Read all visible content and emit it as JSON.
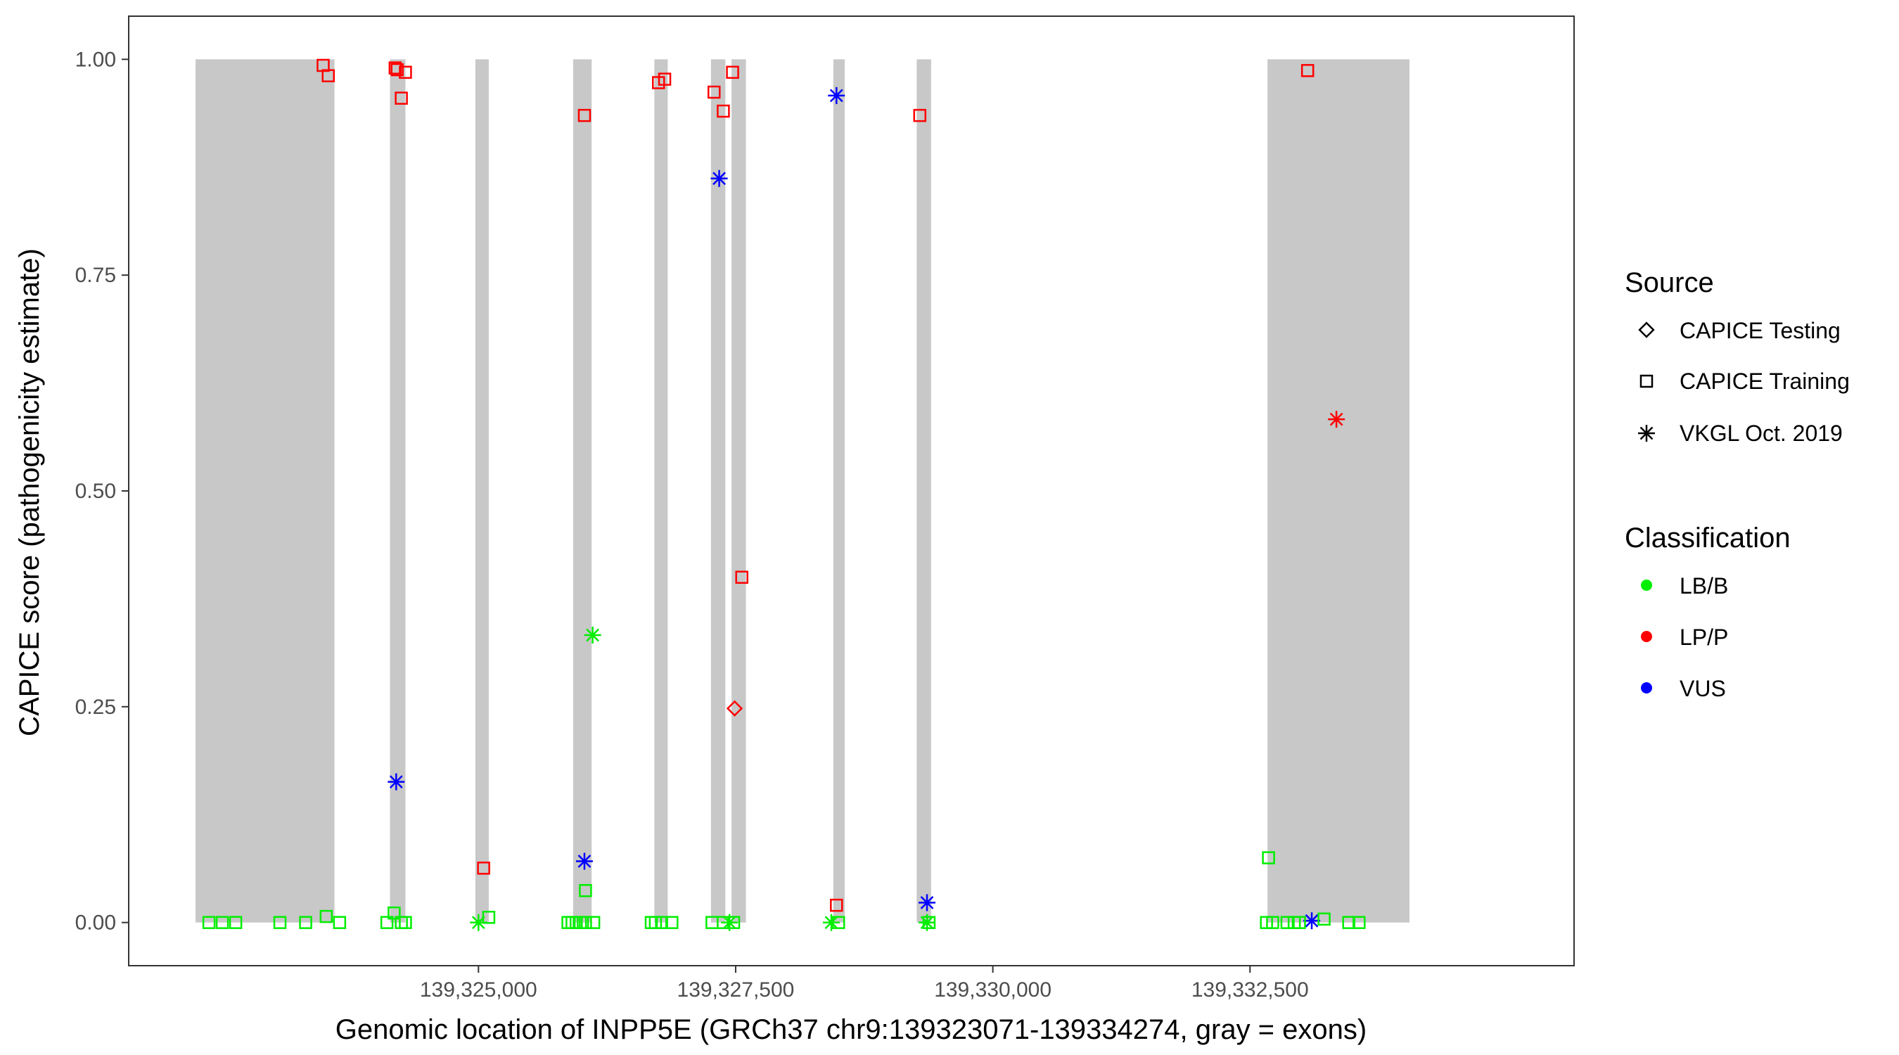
{
  "chart_data": {
    "type": "scatter",
    "title": "",
    "xlabel": "Genomic location of INPP5E (GRCh37 chr9:139323071-139334274, gray = exons)",
    "ylabel": "CAPICE score (pathogenicity estimate)",
    "xlim": [
      139321600,
      139335650
    ],
    "ylim": [
      -0.05,
      1.05
    ],
    "x_ticks": [
      139325000,
      139327500,
      139330000,
      139332500
    ],
    "x_tick_labels": [
      "139,325,000",
      "139,327,500",
      "139,330,000",
      "139,332,500"
    ],
    "y_ticks": [
      0,
      0.25,
      0.5,
      0.75,
      1
    ],
    "y_tick_labels": [
      "0.00",
      "0.25",
      "0.50",
      "0.75",
      "1.00"
    ],
    "grid": false,
    "exon_color": "#c8c8c8",
    "exons": [
      {
        "start": 139322250,
        "end": 139323600,
        "ymin": 0,
        "ymax": 1
      },
      {
        "start": 139324140,
        "end": 139324290,
        "ymin": 0,
        "ymax": 1
      },
      {
        "start": 139324970,
        "end": 139325100,
        "ymin": 0,
        "ymax": 1
      },
      {
        "start": 139325920,
        "end": 139326100,
        "ymin": 0,
        "ymax": 1
      },
      {
        "start": 139326710,
        "end": 139326840,
        "ymin": 0,
        "ymax": 1
      },
      {
        "start": 139327260,
        "end": 139327400,
        "ymin": 0,
        "ymax": 1
      },
      {
        "start": 139327460,
        "end": 139327600,
        "ymin": 0,
        "ymax": 1
      },
      {
        "start": 139328450,
        "end": 139328560,
        "ymin": 0,
        "ymax": 1
      },
      {
        "start": 139329260,
        "end": 139329400,
        "ymin": 0,
        "ymax": 1
      },
      {
        "start": 139332670,
        "end": 139334050,
        "ymin": 0,
        "ymax": 1
      }
    ],
    "legend": {
      "position": "right",
      "source": {
        "title": "Source",
        "items": [
          {
            "label": "CAPICE Testing",
            "shape": "diamond"
          },
          {
            "label": "CAPICE Training",
            "shape": "square"
          },
          {
            "label": "VKGL Oct. 2019",
            "shape": "asterisk"
          }
        ]
      },
      "classification": {
        "title": "Classification",
        "items": [
          {
            "label": "LB/B",
            "color": "#00ee00"
          },
          {
            "label": "LP/P",
            "color": "#ff0000"
          },
          {
            "label": "VUS",
            "color": "#0000ff"
          }
        ]
      }
    },
    "points": [
      {
        "x": 139323490,
        "y": 0.993,
        "shape": "square",
        "cls": "LP/P"
      },
      {
        "x": 139323540,
        "y": 0.981,
        "shape": "square",
        "cls": "LP/P"
      },
      {
        "x": 139324190,
        "y": 0.99,
        "shape": "square",
        "cls": "LP/P"
      },
      {
        "x": 139324210,
        "y": 0.988,
        "shape": "square",
        "cls": "LP/P"
      },
      {
        "x": 139324290,
        "y": 0.985,
        "shape": "square",
        "cls": "LP/P"
      },
      {
        "x": 139324250,
        "y": 0.955,
        "shape": "square",
        "cls": "LP/P"
      },
      {
        "x": 139325050,
        "y": 0.063,
        "shape": "square",
        "cls": "LP/P"
      },
      {
        "x": 139326030,
        "y": 0.935,
        "shape": "square",
        "cls": "LP/P"
      },
      {
        "x": 139326750,
        "y": 0.973,
        "shape": "square",
        "cls": "LP/P"
      },
      {
        "x": 139326810,
        "y": 0.977,
        "shape": "square",
        "cls": "LP/P"
      },
      {
        "x": 139327290,
        "y": 0.962,
        "shape": "square",
        "cls": "LP/P"
      },
      {
        "x": 139327380,
        "y": 0.94,
        "shape": "square",
        "cls": "LP/P"
      },
      {
        "x": 139327470,
        "y": 0.985,
        "shape": "square",
        "cls": "LP/P"
      },
      {
        "x": 139327560,
        "y": 0.4,
        "shape": "square",
        "cls": "LP/P"
      },
      {
        "x": 139328480,
        "y": 0.02,
        "shape": "square",
        "cls": "LP/P"
      },
      {
        "x": 139329290,
        "y": 0.935,
        "shape": "square",
        "cls": "LP/P"
      },
      {
        "x": 139333060,
        "y": 0.987,
        "shape": "square",
        "cls": "LP/P"
      },
      {
        "x": 139327490,
        "y": 0.248,
        "shape": "diamond",
        "cls": "LP/P"
      },
      {
        "x": 139333340,
        "y": 0.583,
        "shape": "asterisk",
        "cls": "LP/P"
      },
      {
        "x": 139324200,
        "y": 0.163,
        "shape": "asterisk",
        "cls": "VUS"
      },
      {
        "x": 139326030,
        "y": 0.071,
        "shape": "asterisk",
        "cls": "VUS"
      },
      {
        "x": 139327340,
        "y": 0.862,
        "shape": "asterisk",
        "cls": "VUS"
      },
      {
        "x": 139328480,
        "y": 0.958,
        "shape": "asterisk",
        "cls": "VUS"
      },
      {
        "x": 139329360,
        "y": 0.023,
        "shape": "asterisk",
        "cls": "VUS"
      },
      {
        "x": 139333100,
        "y": 0.002,
        "shape": "asterisk",
        "cls": "VUS"
      },
      {
        "x": 139326110,
        "y": 0.333,
        "shape": "asterisk",
        "cls": "LB/B"
      },
      {
        "x": 139326040,
        "y": 0.037,
        "shape": "square",
        "cls": "LB/B"
      },
      {
        "x": 139332680,
        "y": 0.075,
        "shape": "square",
        "cls": "LB/B"
      },
      {
        "x": 139324180,
        "y": 0.011,
        "shape": "square",
        "cls": "LB/B"
      },
      {
        "x": 139323520,
        "y": 0.007,
        "shape": "square",
        "cls": "LB/B"
      },
      {
        "x": 139325100,
        "y": 0.006,
        "shape": "square",
        "cls": "LB/B"
      },
      {
        "x": 139333220,
        "y": 0.004,
        "shape": "square",
        "cls": "LB/B"
      },
      {
        "x": 139322380,
        "y": 0.0,
        "shape": "square",
        "cls": "LB/B"
      },
      {
        "x": 139322510,
        "y": 0.0,
        "shape": "square",
        "cls": "LB/B"
      },
      {
        "x": 139322640,
        "y": 0.0,
        "shape": "square",
        "cls": "LB/B"
      },
      {
        "x": 139323070,
        "y": 0.0,
        "shape": "square",
        "cls": "LB/B"
      },
      {
        "x": 139323320,
        "y": 0.0,
        "shape": "square",
        "cls": "LB/B"
      },
      {
        "x": 139323650,
        "y": 0.0,
        "shape": "square",
        "cls": "LB/B"
      },
      {
        "x": 139324110,
        "y": 0.0,
        "shape": "square",
        "cls": "LB/B"
      },
      {
        "x": 139324250,
        "y": 0.0,
        "shape": "square",
        "cls": "LB/B"
      },
      {
        "x": 139324290,
        "y": 0.0,
        "shape": "square",
        "cls": "LB/B"
      },
      {
        "x": 139325000,
        "y": 0.0,
        "shape": "asterisk",
        "cls": "LB/B"
      },
      {
        "x": 139325870,
        "y": 0.0,
        "shape": "square",
        "cls": "LB/B"
      },
      {
        "x": 139325910,
        "y": 0.0,
        "shape": "square",
        "cls": "LB/B"
      },
      {
        "x": 139325950,
        "y": 0.0,
        "shape": "square",
        "cls": "LB/B"
      },
      {
        "x": 139325990,
        "y": 0.0,
        "shape": "square",
        "cls": "LB/B"
      },
      {
        "x": 139326040,
        "y": 0.0,
        "shape": "square",
        "cls": "LB/B"
      },
      {
        "x": 139326120,
        "y": 0.0,
        "shape": "square",
        "cls": "LB/B"
      },
      {
        "x": 139326680,
        "y": 0.0,
        "shape": "square",
        "cls": "LB/B"
      },
      {
        "x": 139326720,
        "y": 0.0,
        "shape": "square",
        "cls": "LB/B"
      },
      {
        "x": 139326780,
        "y": 0.0,
        "shape": "square",
        "cls": "LB/B"
      },
      {
        "x": 139326880,
        "y": 0.0,
        "shape": "square",
        "cls": "LB/B"
      },
      {
        "x": 139327270,
        "y": 0.0,
        "shape": "square",
        "cls": "LB/B"
      },
      {
        "x": 139327380,
        "y": 0.0,
        "shape": "square",
        "cls": "LB/B"
      },
      {
        "x": 139327440,
        "y": 0.0,
        "shape": "asterisk",
        "cls": "LB/B"
      },
      {
        "x": 139327480,
        "y": 0.0,
        "shape": "square",
        "cls": "LB/B"
      },
      {
        "x": 139328430,
        "y": 0.0,
        "shape": "asterisk",
        "cls": "LB/B"
      },
      {
        "x": 139328500,
        "y": 0.0,
        "shape": "square",
        "cls": "LB/B"
      },
      {
        "x": 139329360,
        "y": 0.0,
        "shape": "asterisk",
        "cls": "LB/B"
      },
      {
        "x": 139329380,
        "y": 0.0,
        "shape": "square",
        "cls": "LB/B"
      },
      {
        "x": 139332660,
        "y": 0.0,
        "shape": "square",
        "cls": "LB/B"
      },
      {
        "x": 139332720,
        "y": 0.0,
        "shape": "square",
        "cls": "LB/B"
      },
      {
        "x": 139332860,
        "y": 0.0,
        "shape": "square",
        "cls": "LB/B"
      },
      {
        "x": 139332930,
        "y": 0.0,
        "shape": "square",
        "cls": "LB/B"
      },
      {
        "x": 139332980,
        "y": 0.0,
        "shape": "square",
        "cls": "LB/B"
      },
      {
        "x": 139333460,
        "y": 0.0,
        "shape": "square",
        "cls": "LB/B"
      },
      {
        "x": 139333560,
        "y": 0.0,
        "shape": "square",
        "cls": "LB/B"
      }
    ]
  }
}
